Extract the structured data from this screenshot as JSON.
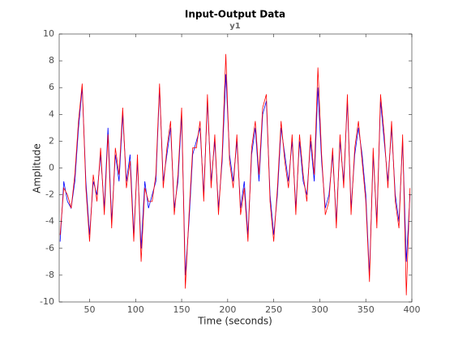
{
  "chart_data": {
    "type": "line",
    "title": "Input-Output Data",
    "subtitle": "y1",
    "xlabel": "Time (seconds)",
    "ylabel": "Amplitude",
    "x": [
      18,
      22,
      26,
      30,
      34,
      38,
      42,
      46,
      50,
      54,
      58,
      62,
      66,
      70,
      74,
      78,
      82,
      86,
      90,
      94,
      98,
      102,
      106,
      110,
      114,
      118,
      122,
      126,
      130,
      134,
      138,
      142,
      146,
      150,
      154,
      158,
      162,
      166,
      170,
      174,
      178,
      182,
      186,
      190,
      194,
      198,
      202,
      206,
      210,
      214,
      218,
      222,
      226,
      230,
      234,
      238,
      242,
      246,
      250,
      254,
      258,
      262,
      266,
      270,
      274,
      278,
      282,
      286,
      290,
      294,
      298,
      302,
      306,
      310,
      314,
      318,
      322,
      326,
      330,
      334,
      338,
      342,
      346,
      350,
      354,
      358,
      362,
      366,
      370,
      374,
      378,
      382,
      386,
      390,
      394,
      398
    ],
    "series": [
      {
        "color": "#0000ff",
        "values": [
          -5.5,
          -1,
          -2.5,
          -3,
          -1,
          3,
          6,
          -1,
          -5,
          -1,
          -2,
          1,
          -3,
          3,
          -4,
          1,
          -1,
          4,
          -1,
          1,
          -5,
          0.5,
          -6,
          -1,
          -3,
          -2,
          -1,
          6,
          -1,
          1,
          3,
          -3,
          -1,
          4,
          -8,
          -4,
          1,
          2,
          3,
          -2,
          5,
          -1,
          2,
          -3,
          0.5,
          7,
          1,
          -1,
          2,
          -3,
          -1,
          -5,
          1,
          3,
          -1,
          4,
          5,
          -2,
          -5,
          -2,
          3,
          1,
          -1,
          2,
          -3,
          2,
          -1,
          -2,
          2,
          -1,
          6,
          0.5,
          -3,
          -2,
          1,
          -4,
          2,
          -1,
          5,
          -3,
          1,
          3,
          1,
          -2,
          -8,
          1,
          -4,
          5,
          2,
          -1,
          3,
          -2,
          -4,
          2,
          -7,
          -2
        ]
      },
      {
        "color": "#ff0000",
        "values": [
          -5,
          -1.5,
          -2,
          -3,
          -0.5,
          3.5,
          6.3,
          -1.5,
          -5.5,
          -0.5,
          -2.5,
          1.5,
          -3.5,
          2.5,
          -4.5,
          1.5,
          -0.5,
          4.5,
          -1.5,
          0.5,
          -5.5,
          1,
          -7,
          -1.5,
          -2.5,
          -2.5,
          -0.5,
          6.3,
          -1.5,
          1.5,
          3.5,
          -3.5,
          -0.5,
          4.5,
          -9,
          -3.5,
          1.5,
          1.5,
          3.5,
          -2.5,
          5.5,
          -1.5,
          2.5,
          -3.5,
          1,
          8.5,
          0.5,
          -1.5,
          2.5,
          -3.5,
          -1.5,
          -5.5,
          1.5,
          3.5,
          -0.5,
          4.5,
          5.5,
          -2.5,
          -5.5,
          -1.5,
          3.5,
          0.5,
          -1.5,
          2.5,
          -3.5,
          2.5,
          -0.5,
          -2.5,
          2.5,
          -0.5,
          7.5,
          1,
          -3.5,
          -2.5,
          1.5,
          -4.5,
          2.5,
          -1.5,
          5.5,
          -3.5,
          1.5,
          3.5,
          0.5,
          -2.5,
          -8.5,
          1.5,
          -4.5,
          5.5,
          2.5,
          -1.5,
          3.5,
          -2.5,
          -4.5,
          2.5,
          -9.5,
          -1.5
        ]
      }
    ],
    "xlim": [
      17,
      400
    ],
    "ylim": [
      -10,
      10
    ],
    "xticks": [
      50,
      100,
      150,
      200,
      250,
      300,
      350,
      400
    ],
    "yticks": [
      -10,
      -8,
      -6,
      -4,
      -2,
      0,
      2,
      4,
      6,
      8,
      10
    ]
  }
}
